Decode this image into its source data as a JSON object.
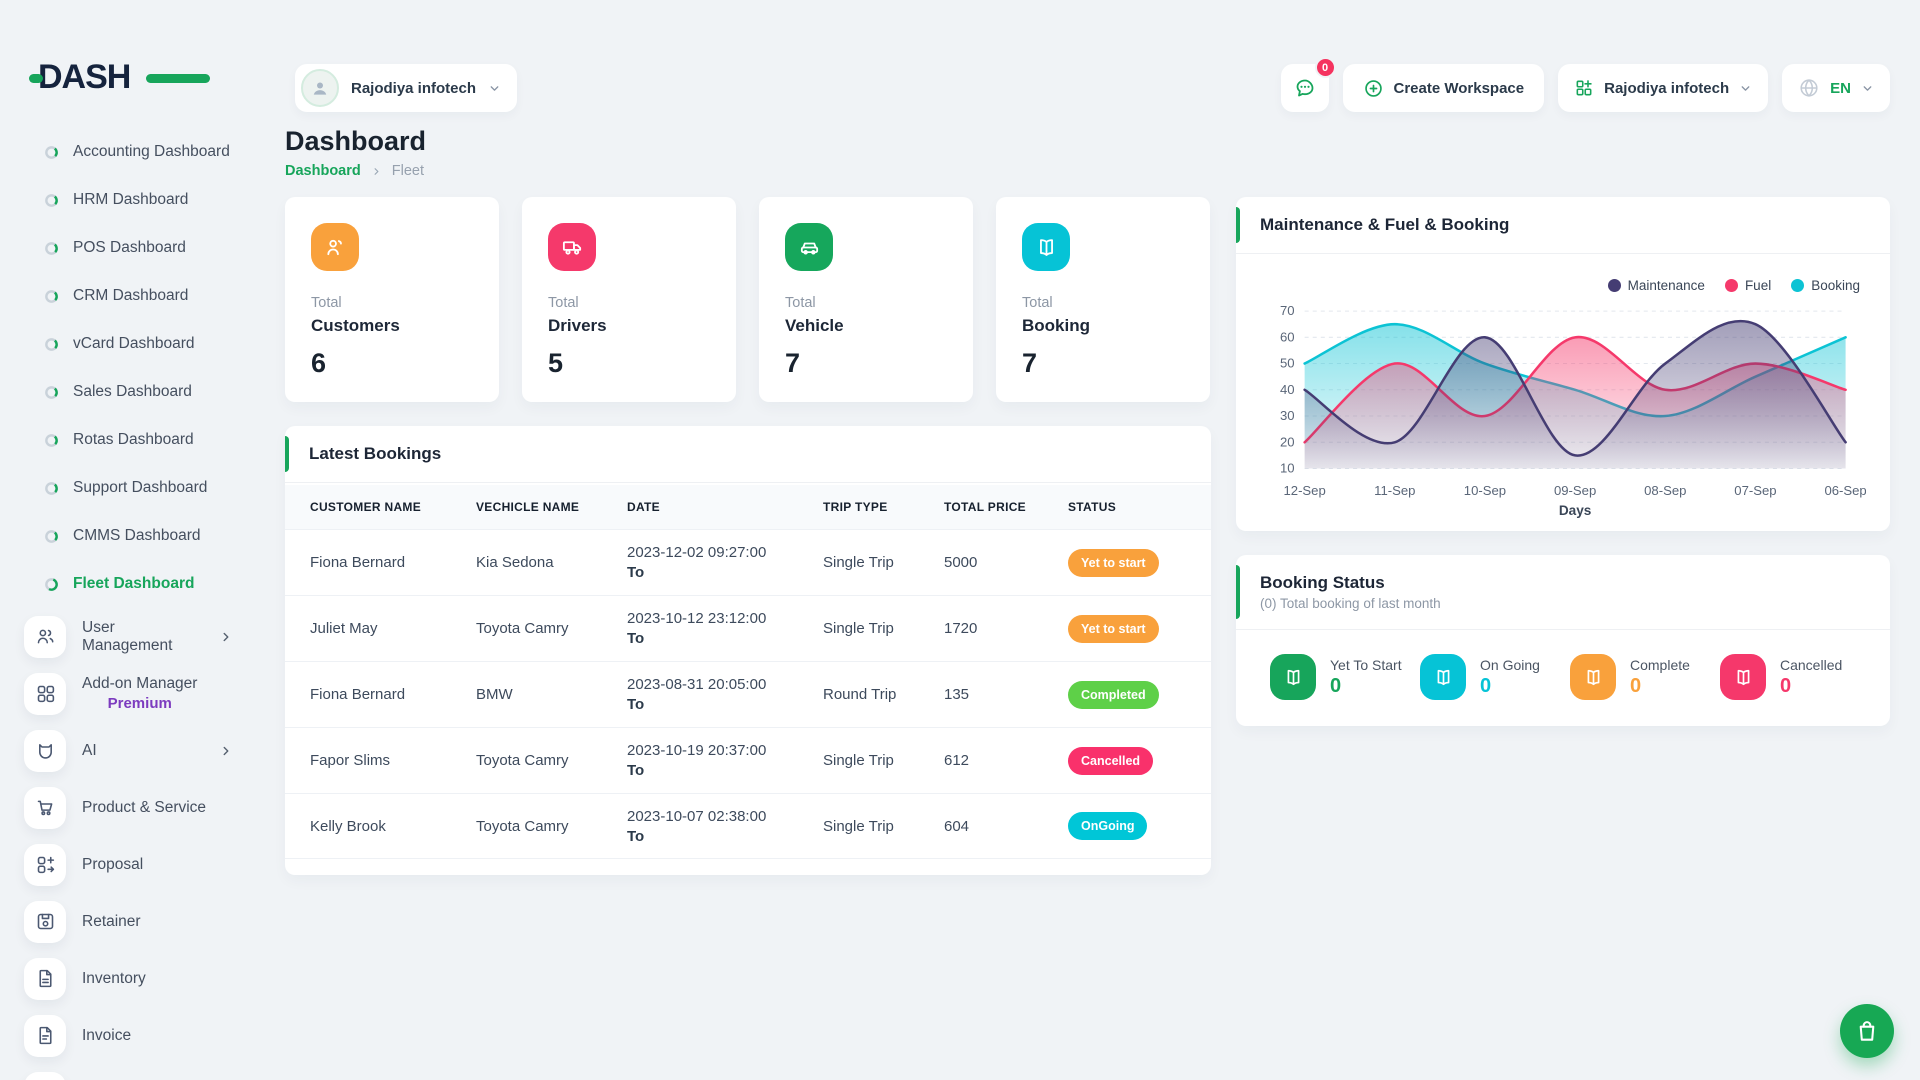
{
  "app": {
    "logo_text": "DASH"
  },
  "header": {
    "workspace_label": "Rajodiya infotech",
    "chat_badge": "0",
    "create_workspace_label": "Create Workspace",
    "account_label": "Rajodiya infotech",
    "language_label": "EN"
  },
  "sidebar": {
    "dashboards": [
      {
        "label": "Accounting Dashboard",
        "active": false
      },
      {
        "label": "HRM Dashboard",
        "active": false
      },
      {
        "label": "POS Dashboard",
        "active": false
      },
      {
        "label": "CRM Dashboard",
        "active": false
      },
      {
        "label": "vCard Dashboard",
        "active": false
      },
      {
        "label": "Sales Dashboard",
        "active": false
      },
      {
        "label": "Rotas Dashboard",
        "active": false
      },
      {
        "label": "Support Dashboard",
        "active": false
      },
      {
        "label": "CMMS Dashboard",
        "active": false
      },
      {
        "label": "Fleet Dashboard",
        "active": true
      }
    ],
    "modules": [
      {
        "label": "User Management",
        "icon": "users-icon",
        "chevron": true
      },
      {
        "label": "Add-on Manager",
        "sub": "Premium",
        "icon": "addon-grid-icon"
      },
      {
        "label": "AI",
        "icon": "ai-bot-icon",
        "chevron": true
      },
      {
        "label": "Product & Service",
        "icon": "cart-icon"
      },
      {
        "label": "Proposal",
        "icon": "proposal-icon"
      },
      {
        "label": "Retainer",
        "icon": "retainer-icon"
      },
      {
        "label": "Inventory",
        "icon": "inventory-icon"
      },
      {
        "label": "Invoice",
        "icon": "invoice-icon"
      }
    ]
  },
  "page": {
    "title": "Dashboard",
    "breadcrumb_root": "Dashboard",
    "breadcrumb_current": "Fleet"
  },
  "stats": [
    {
      "total_label": "Total",
      "name": "Customers",
      "value": "6",
      "color": "#f9a13c",
      "icon": "users-icon"
    },
    {
      "total_label": "Total",
      "name": "Drivers",
      "value": "5",
      "color": "#f5396b",
      "icon": "truck-icon"
    },
    {
      "total_label": "Total",
      "name": "Vehicle",
      "value": "7",
      "color": "#16a75c",
      "icon": "car-icon"
    },
    {
      "total_label": "Total",
      "name": "Booking",
      "value": "7",
      "color": "#06c3d6",
      "icon": "book-icon"
    }
  ],
  "bookings": {
    "title": "Latest Bookings",
    "headers": [
      "CUSTOMER NAME",
      "VECHICLE NAME",
      "DATE",
      "TRIP TYPE",
      "TOTAL PRICE",
      "STATUS"
    ],
    "to_label": "To",
    "rows": [
      {
        "customer": "Fiona Bernard",
        "vehicle": "Kia Sedona",
        "date": "2023-12-02 09:27:00",
        "trip": "Single Trip",
        "price": "5000",
        "status": "Yet to start",
        "status_color": "#f9a13c"
      },
      {
        "customer": "Juliet May",
        "vehicle": "Toyota Camry",
        "date": "2023-10-12 23:12:00",
        "trip": "Single Trip",
        "price": "1720",
        "status": "Yet to start",
        "status_color": "#f9a13c"
      },
      {
        "customer": "Fiona Bernard",
        "vehicle": "BMW",
        "date": "2023-08-31 20:05:00",
        "trip": "Round Trip",
        "price": "135",
        "status": "Completed",
        "status_color": "#5ed048"
      },
      {
        "customer": "Fapor Slims",
        "vehicle": "Toyota Camry",
        "date": "2023-10-19 20:37:00",
        "trip": "Single Trip",
        "price": "612",
        "status": "Cancelled",
        "status_color": "#f9316b"
      },
      {
        "customer": "Kelly Brook",
        "vehicle": "Toyota Camry",
        "date": "2023-10-07 02:38:00",
        "trip": "Single Trip",
        "price": "604",
        "status": "OnGoing",
        "status_color": "#00c6d7"
      }
    ]
  },
  "chart_card": {
    "title": "Maintenance & Fuel & Booking"
  },
  "chart_data": {
    "type": "area",
    "title": "Maintenance & Fuel & Booking",
    "x": [
      "12-Sep",
      "11-Sep",
      "10-Sep",
      "09-Sep",
      "08-Sep",
      "07-Sep",
      "06-Sep"
    ],
    "xlabel": "Days",
    "ylim": [
      10,
      70
    ],
    "yticks": [
      10,
      20,
      30,
      40,
      50,
      60,
      70
    ],
    "grid": "dashed-horizontal",
    "legend_position": "top-right",
    "series": [
      {
        "name": "Maintenance",
        "color": "#453d73",
        "values": [
          40,
          20,
          60,
          15,
          50,
          65,
          20
        ]
      },
      {
        "name": "Fuel",
        "color": "#f5396b",
        "values": [
          20,
          50,
          30,
          60,
          40,
          50,
          40
        ]
      },
      {
        "name": "Booking",
        "color": "#0cc3d4",
        "values": [
          50,
          65,
          50,
          40,
          30,
          45,
          60
        ]
      }
    ]
  },
  "booking_status": {
    "title": "Booking Status",
    "subtitle": "(0) Total booking of last month",
    "items": [
      {
        "label": "Yet To Start",
        "value": "0",
        "color": "#17a55b",
        "icon": "book-icon"
      },
      {
        "label": "On Going",
        "value": "0",
        "color": "#06c3d6",
        "icon": "book-icon"
      },
      {
        "label": "Complete",
        "value": "0",
        "color": "#f9a13c",
        "icon": "book-icon"
      },
      {
        "label": "Cancelled",
        "value": "0",
        "color": "#f5386b",
        "icon": "book-icon"
      }
    ]
  },
  "fab": {
    "icon": "shopping-bag-icon"
  },
  "colors": {
    "primary": "#17a55b",
    "premium": "#7c3bbf",
    "chat_badge": "#f5335f"
  }
}
